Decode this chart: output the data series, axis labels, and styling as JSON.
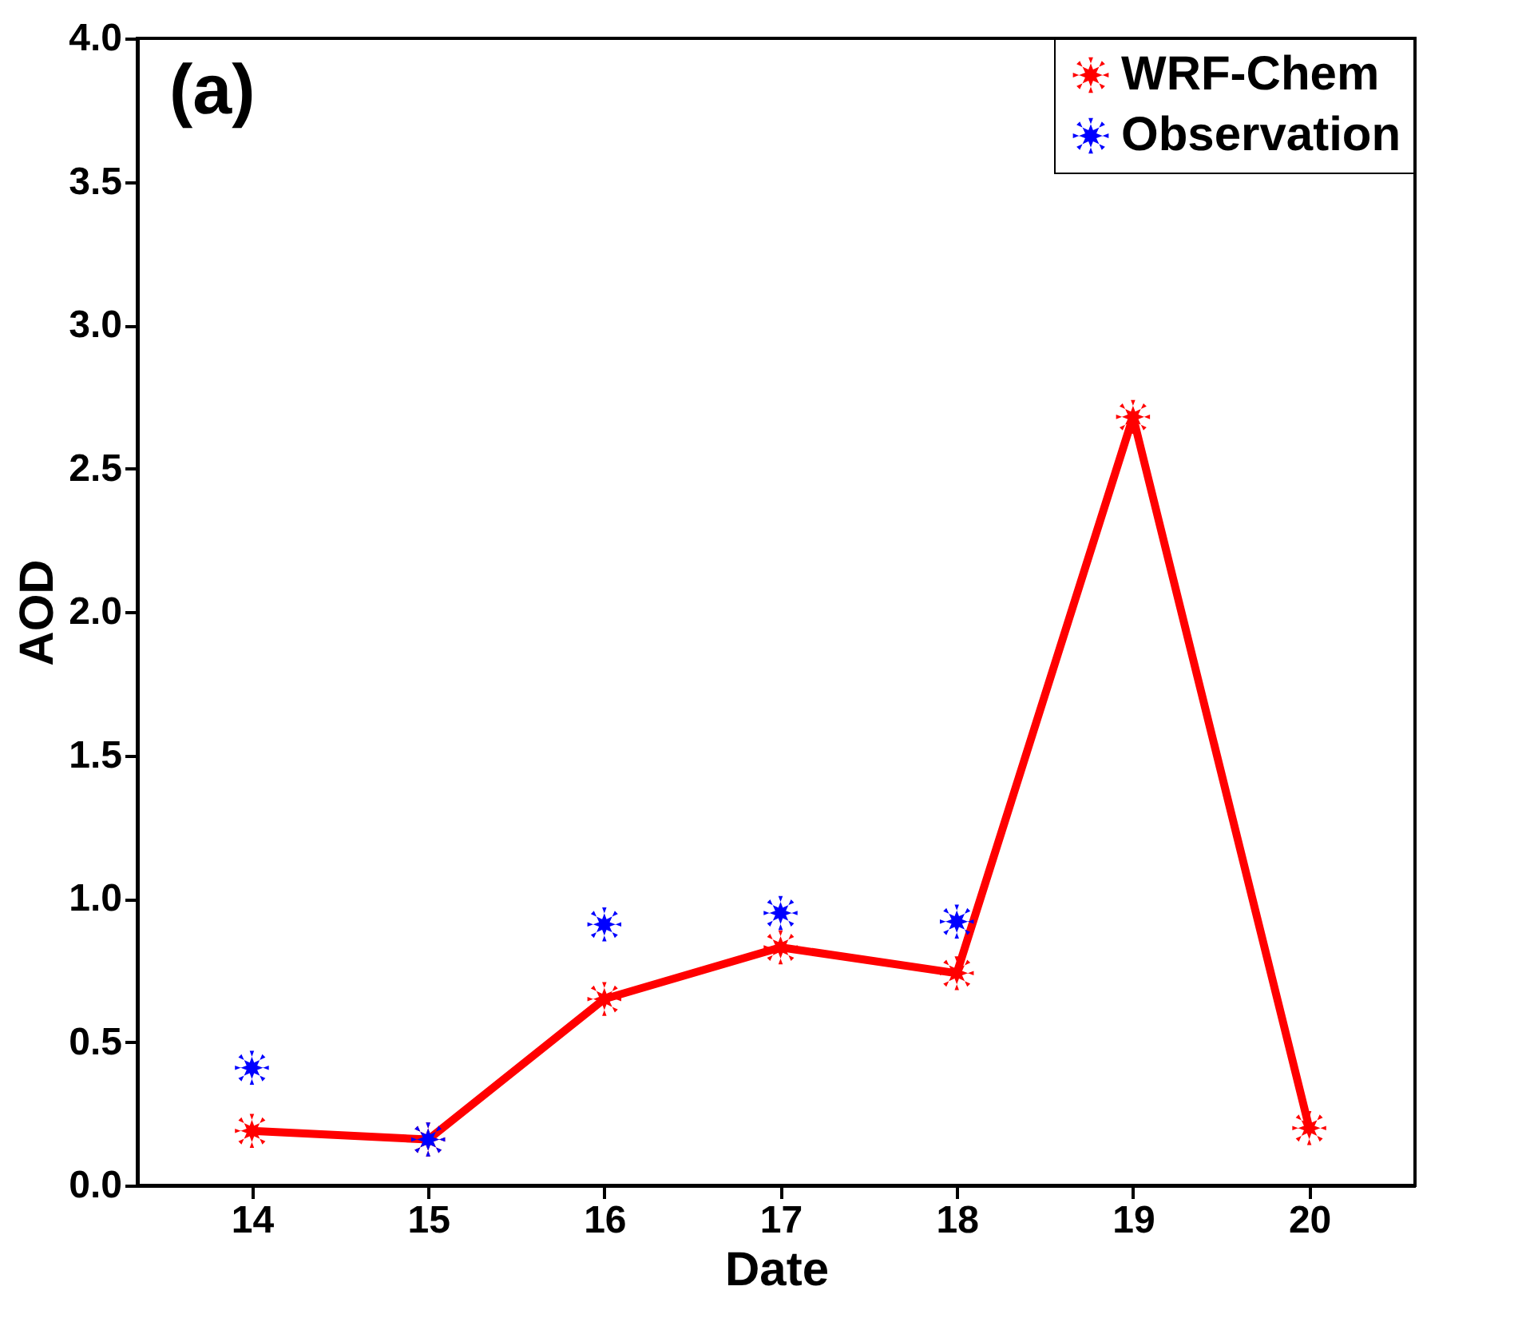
{
  "chart_data": {
    "type": "line",
    "xlabel": "Date",
    "ylabel": "AOD",
    "annotations": [
      "(a)"
    ],
    "x": [
      14,
      15,
      16,
      17,
      18,
      19,
      20
    ],
    "series": [
      {
        "name": "WRF-Chem",
        "color": "#ff0000",
        "values": [
          0.19,
          0.16,
          0.65,
          0.83,
          0.74,
          2.68,
          0.2
        ]
      },
      {
        "name": "Observation",
        "color": "#0000ff",
        "type": "scatter",
        "values": [
          0.41,
          0.16,
          0.91,
          0.95,
          0.92,
          null,
          null
        ]
      }
    ],
    "xlim": [
      13.35,
      20.6
    ],
    "xticks": [
      14,
      15,
      16,
      17,
      18,
      19,
      20
    ],
    "ylim": [
      0,
      4
    ],
    "yticks": [
      {
        "value": 0,
        "label": "0.0"
      },
      0.5,
      {
        "value": 1,
        "label": "1.0"
      },
      1.5,
      {
        "value": 2,
        "label": "2.0"
      },
      2.5,
      {
        "value": 3,
        "label": "3.0"
      },
      3.5,
      {
        "value": 4,
        "label": "4.0"
      }
    ],
    "grid": false,
    "legend": "top right",
    "marker": "cross",
    "line_style": "solid"
  }
}
